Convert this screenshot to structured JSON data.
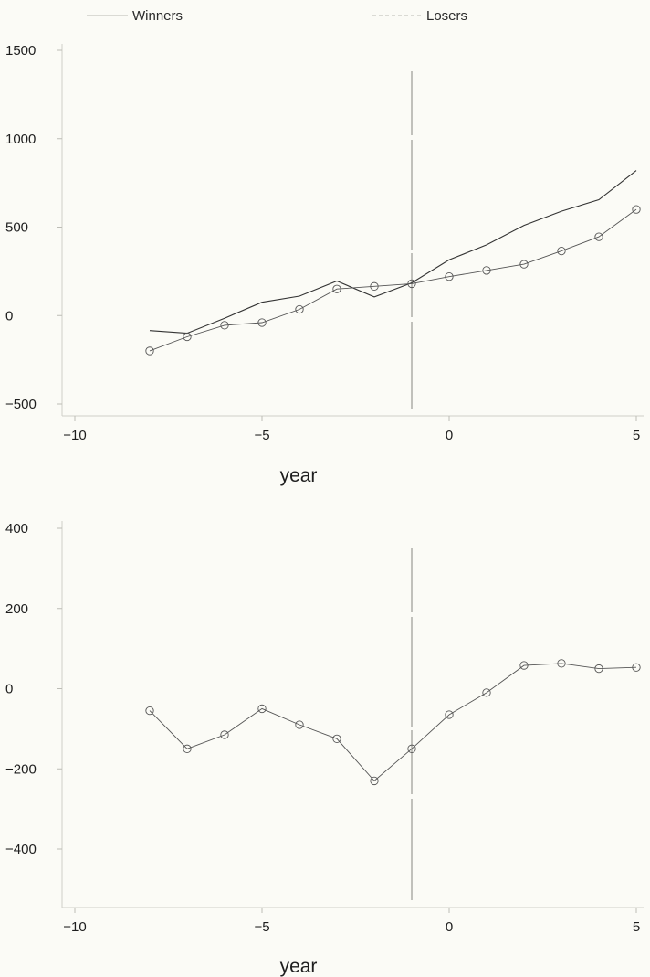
{
  "chart_data": [
    {
      "type": "line",
      "xlabel": "year",
      "ylabel": "",
      "xlim": [
        -10,
        5
      ],
      "ylim": [
        -500,
        1500
      ],
      "xticks": [
        -10,
        -5,
        0,
        5
      ],
      "yticks": [
        -500,
        0,
        500,
        1000,
        1500
      ],
      "xtick_labels": [
        "−10",
        "−5",
        "0",
        "5"
      ],
      "ytick_labels": [
        "−500",
        "0",
        "500",
        "1000",
        "1500"
      ],
      "vline_x": -1,
      "legend": {
        "placement": "top"
      },
      "grid": false,
      "series": [
        {
          "name": "Winners",
          "marker": "none",
          "color": "#333333",
          "x": [
            -8,
            -7,
            -6,
            -5,
            -4,
            -3,
            -2,
            -1,
            0,
            1,
            2,
            3,
            4,
            5
          ],
          "y": [
            -85,
            -100,
            -15,
            75,
            110,
            195,
            105,
            185,
            315,
            400,
            510,
            590,
            655,
            820
          ]
        },
        {
          "name": "Losers",
          "marker": "circle",
          "color": "#555555",
          "x": [
            -8,
            -7,
            -6,
            -5,
            -4,
            -3,
            -2,
            -1,
            0,
            1,
            2,
            3,
            4,
            5
          ],
          "y": [
            -200,
            -120,
            -55,
            -40,
            35,
            150,
            165,
            180,
            220,
            255,
            290,
            365,
            445,
            600
          ]
        }
      ]
    },
    {
      "type": "line",
      "xlabel": "year",
      "ylabel": "",
      "xlim": [
        -10,
        5
      ],
      "ylim": [
        -400,
        400
      ],
      "xticks": [
        -10,
        -5,
        0,
        5
      ],
      "yticks": [
        -400,
        -200,
        0,
        200,
        400
      ],
      "xtick_labels": [
        "−10",
        "−5",
        "0",
        "5"
      ],
      "ytick_labels": [
        "−400",
        "−200",
        "0",
        "200",
        "400"
      ],
      "vline_x": -1,
      "grid": false,
      "series": [
        {
          "marker": "circle",
          "color": "#555555",
          "x": [
            -8,
            -7,
            -6,
            -5,
            -4,
            -3,
            -2,
            -1,
            0,
            1,
            2,
            3,
            4,
            5
          ],
          "y": [
            -55,
            -150,
            -115,
            -50,
            -90,
            -125,
            -230,
            -150,
            -65,
            -10,
            58,
            63,
            50,
            53
          ]
        }
      ]
    }
  ]
}
